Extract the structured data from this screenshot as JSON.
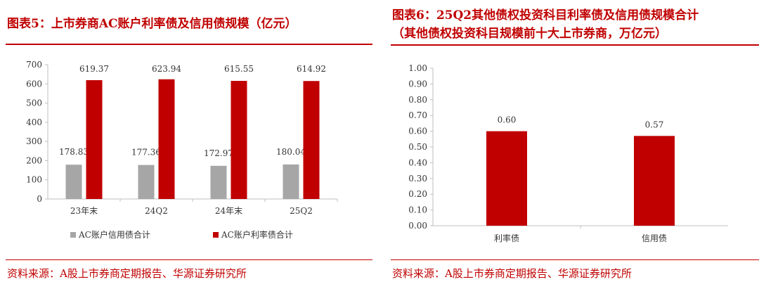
{
  "left_panel": {
    "title": "图表5：上市券商AC账户利率债及信用债规模（亿元）",
    "source": "资料来源：A股上市券商定期报告、华源证券研究所"
  },
  "right_panel": {
    "title_line1": "图表6：25Q2其他债权投资科目利率债及信用债规模合计",
    "title_line2": "（其他债权投资科目规模前十大上市券商，万亿元）",
    "source": "资料来源：A股上市券商定期报告、华源证券研究所"
  },
  "colors": {
    "accent": "#c00000",
    "gray_bar": "#a6a6a6",
    "red_bar": "#c00000",
    "axis": "#bfbfbf"
  },
  "chart_data": [
    {
      "type": "bar",
      "categories": [
        "23年末",
        "24Q2",
        "24年末",
        "25Q2"
      ],
      "series": [
        {
          "name": "AC账户信用债合计",
          "values": [
            178.83,
            177.36,
            172.97,
            180.04
          ],
          "labels": [
            "178.83",
            "177.36",
            "172.97",
            "180.04"
          ]
        },
        {
          "name": "AC账户利率债合计",
          "values": [
            619.37,
            623.94,
            615.55,
            614.92
          ],
          "labels": [
            "619.37",
            "623.94",
            "615.55",
            "614.92"
          ]
        }
      ],
      "ylim": [
        0,
        700
      ],
      "yticks": [
        "0",
        "100",
        "200",
        "300",
        "400",
        "500",
        "600",
        "700"
      ],
      "grid": false,
      "legend": "bottom"
    },
    {
      "type": "bar",
      "categories": [
        "利率债",
        "信用债"
      ],
      "values": [
        0.6,
        0.57
      ],
      "labels": [
        "0.60",
        "0.57"
      ],
      "ylim": [
        0,
        1.0
      ],
      "yticks": [
        "0.00",
        "0.10",
        "0.20",
        "0.30",
        "0.40",
        "0.50",
        "0.60",
        "0.70",
        "0.80",
        "0.90",
        "1.00"
      ],
      "grid": false,
      "legend": "none"
    }
  ]
}
